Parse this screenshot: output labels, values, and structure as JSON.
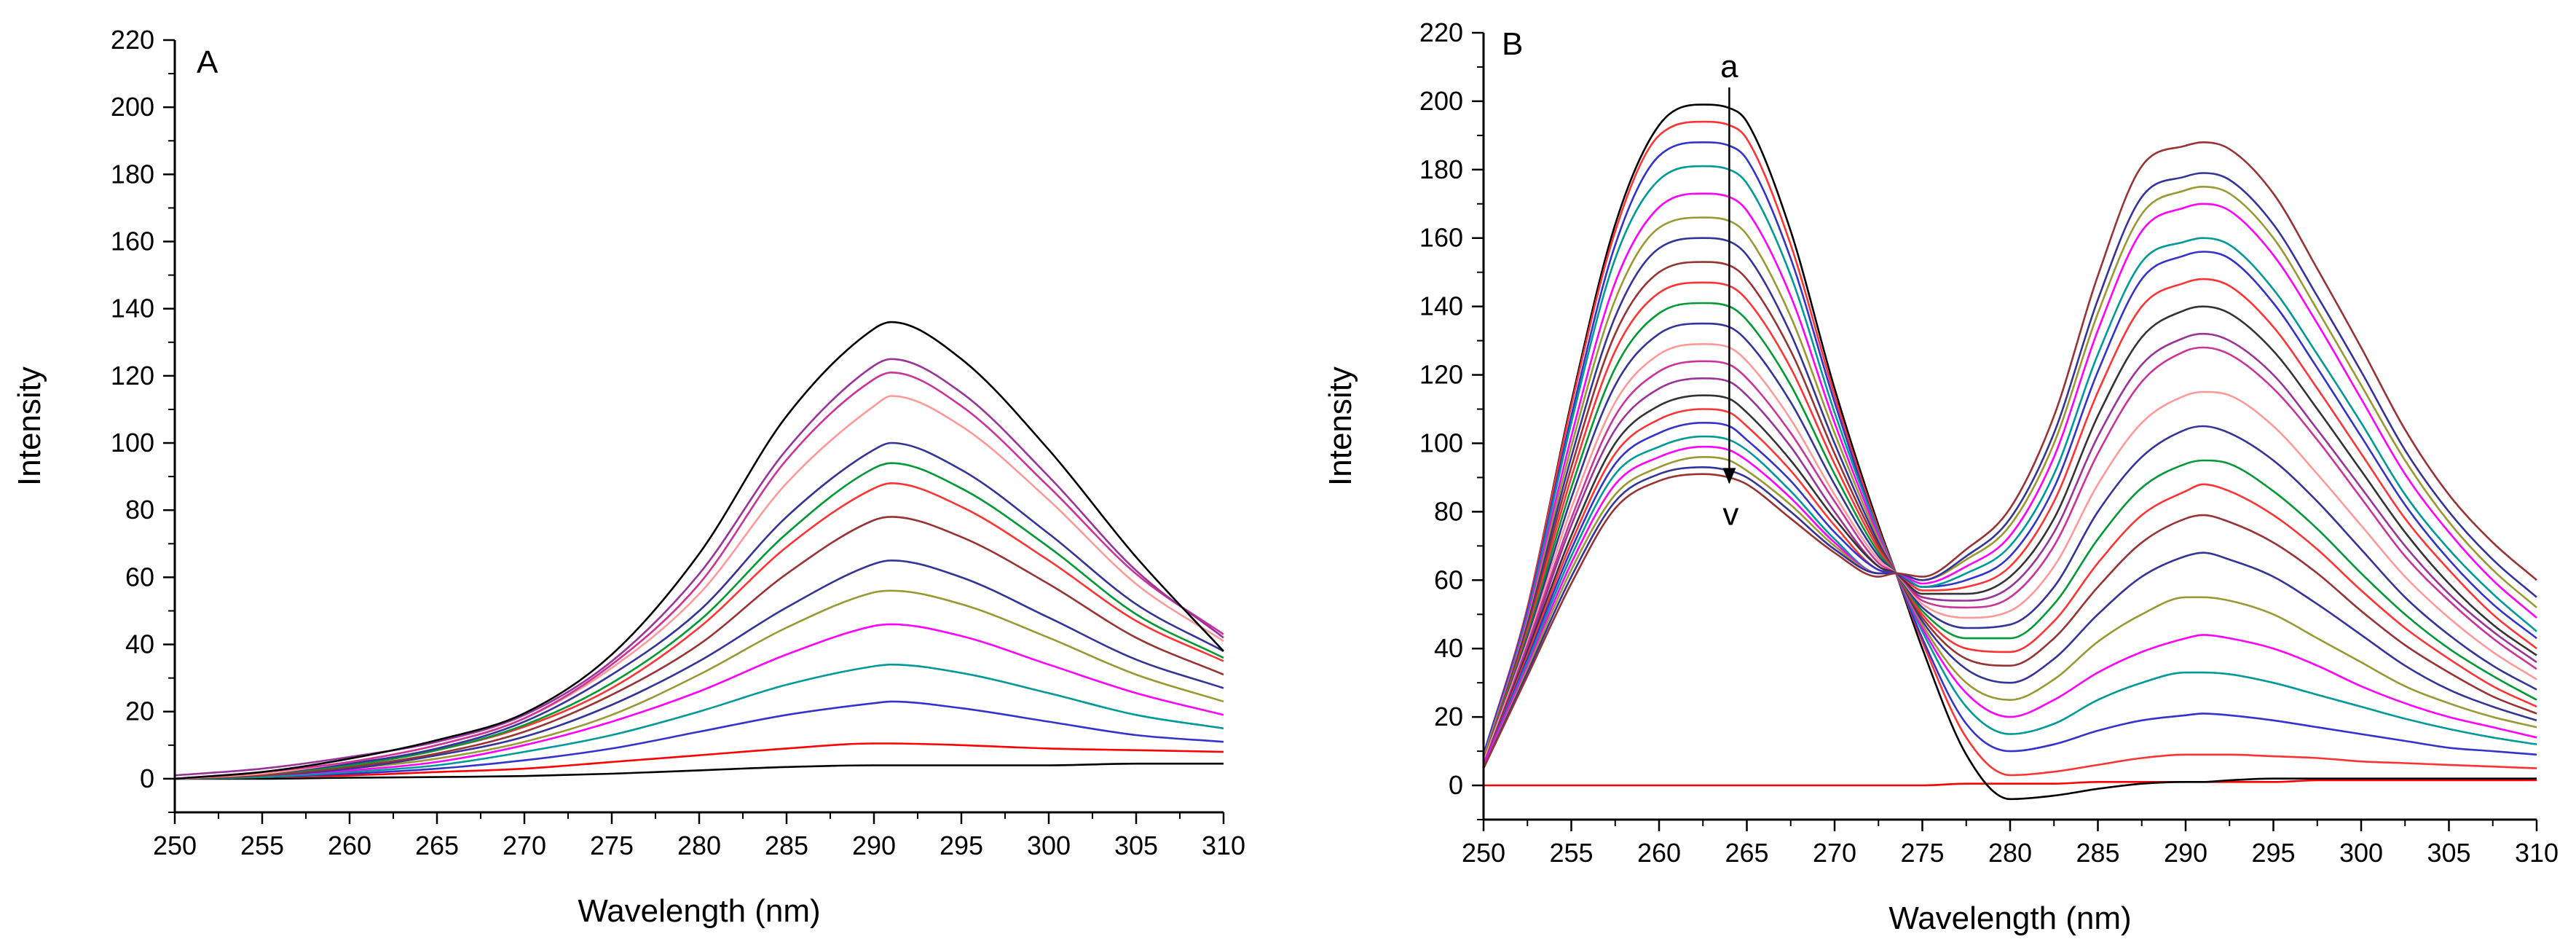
{
  "chart_data": [
    {
      "type": "line",
      "panel_label": "A",
      "xlabel": "Wavelength (nm)",
      "ylabel": "Intensity",
      "xlim": [
        250,
        310
      ],
      "ylim": [
        -10,
        220
      ],
      "xticks": [
        250,
        255,
        260,
        265,
        270,
        275,
        280,
        285,
        290,
        295,
        300,
        305,
        310
      ],
      "yticks": [
        0,
        20,
        40,
        60,
        80,
        100,
        120,
        140,
        160,
        180,
        200,
        220
      ],
      "x": [
        250,
        255,
        260,
        265,
        270,
        275,
        280,
        285,
        290,
        291,
        295,
        300,
        305,
        310
      ],
      "grid": false,
      "legend": "none",
      "series": [
        {
          "color": "#000000",
          "values": [
            0,
            0,
            0.3,
            0.5,
            0.8,
            1.5,
            2.5,
            3.5,
            4,
            4,
            4,
            4,
            4.5,
            4.5
          ]
        },
        {
          "color": "#ff0000",
          "values": [
            0,
            0.5,
            1,
            2,
            3,
            5,
            7,
            9,
            10.5,
            10.5,
            10,
            9,
            8.5,
            8
          ]
        },
        {
          "color": "#3333cc",
          "values": [
            0,
            0.5,
            1.5,
            3,
            5.5,
            9,
            14,
            19,
            22.5,
            23,
            21,
            17,
            13,
            11
          ]
        },
        {
          "color": "#009999",
          "values": [
            0,
            0.5,
            2,
            4,
            8,
            13,
            20,
            28,
            33.5,
            34,
            31.5,
            25.5,
            19,
            15
          ]
        },
        {
          "color": "#ff00ff",
          "values": [
            0,
            1,
            2.5,
            5,
            10,
            17,
            26,
            37,
            45.5,
            46,
            42.5,
            34,
            25.5,
            19
          ]
        },
        {
          "color": "#999933",
          "values": [
            0,
            1,
            3,
            6,
            11,
            19,
            31,
            45,
            55.5,
            56,
            52,
            42,
            31,
            23
          ]
        },
        {
          "color": "#333399",
          "values": [
            0,
            1,
            3,
            7,
            12.5,
            22,
            35,
            51,
            64,
            65,
            60,
            48,
            35.5,
            27
          ]
        },
        {
          "color": "#993333",
          "values": [
            0,
            1,
            3.5,
            7.5,
            14,
            25,
            40,
            61,
            77,
            78,
            72,
            58,
            42,
            31
          ]
        },
        {
          "color": "#ff3333",
          "values": [
            0,
            1.5,
            4,
            8.5,
            15.5,
            27,
            45,
            69,
            86.5,
            88,
            81,
            65,
            47,
            35
          ]
        },
        {
          "color": "#009933",
          "values": [
            0,
            1.5,
            4,
            8.5,
            16,
            28.5,
            47,
            73,
            92.5,
            94,
            86.5,
            69,
            49,
            36
          ]
        },
        {
          "color": "#333399",
          "values": [
            0,
            1.5,
            4.5,
            9,
            17,
            31,
            50,
            78,
            98,
            100,
            92,
            73,
            52,
            38
          ]
        },
        {
          "color": "#ff9999",
          "values": [
            0,
            1.5,
            5,
            10,
            18,
            33,
            55,
            88,
            111,
            114,
            105,
            83,
            58,
            41
          ]
        },
        {
          "color": "#cc3399",
          "values": [
            0,
            2,
            5,
            10,
            18,
            34,
            58,
            95,
            119,
            121,
            111,
            87,
            61,
            43
          ]
        },
        {
          "color": "#993399",
          "values": [
            1,
            3,
            6.5,
            11,
            19,
            35,
            61,
            98,
            123,
            125,
            115,
            90,
            62,
            42
          ]
        },
        {
          "color": "#000000",
          "values": [
            0,
            2,
            6,
            11.5,
            19.5,
            37,
            67,
            108,
            134,
            136,
            125,
            98,
            66,
            38
          ]
        }
      ]
    },
    {
      "type": "line",
      "panel_label": "B",
      "xlabel": "Wavelength (nm)",
      "ylabel": "Intensity",
      "xlim": [
        250,
        310
      ],
      "ylim": [
        -10,
        220
      ],
      "xticks": [
        250,
        255,
        260,
        265,
        270,
        275,
        280,
        285,
        290,
        295,
        300,
        305,
        310
      ],
      "yticks": [
        0,
        20,
        40,
        60,
        80,
        100,
        120,
        140,
        160,
        180,
        200,
        220
      ],
      "x": [
        250,
        252.5,
        255,
        257.5,
        260,
        262.5,
        264,
        265,
        267.5,
        270,
        272.5,
        273.5,
        275,
        277.5,
        280,
        282.5,
        285,
        287.5,
        290,
        291,
        292.5,
        295,
        297.5,
        300,
        302.5,
        305,
        307.5,
        310
      ],
      "grid": false,
      "legend": "none",
      "annotations": [
        {
          "text": "a",
          "x": 264,
          "y": 210
        },
        {
          "text": "v",
          "x": 264,
          "y": 80
        }
      ],
      "series": [
        {
          "color": "#ff0000",
          "values": [
            0,
            0,
            0,
            0,
            0,
            0,
            0,
            0,
            0,
            0,
            0,
            0,
            0,
            0.5,
            0.5,
            0.5,
            1,
            1,
            1,
            1,
            1,
            1,
            1.5,
            1.5,
            1.5,
            1.5,
            1.5,
            1.5
          ]
        },
        {
          "color": "#000000",
          "values": [
            8,
            52,
            112,
            164,
            193,
            199,
            198,
            194,
            162,
            116,
            76,
            62,
            40,
            9,
            -4,
            -3,
            -1,
            0.5,
            1,
            1,
            1.5,
            2,
            2,
            2,
            2,
            2,
            2,
            2
          ]
        },
        {
          "color": "#ff3333",
          "values": [
            9,
            52,
            111,
            162,
            190,
            194,
            193,
            189,
            158,
            114,
            75,
            62,
            42,
            14,
            3,
            4,
            6,
            8,
            9,
            9,
            9,
            8.5,
            8,
            7,
            6.5,
            6,
            5.5,
            5
          ]
        },
        {
          "color": "#3333cc",
          "values": [
            9,
            51,
            108,
            158,
            184,
            188,
            187,
            183,
            154,
            112,
            74,
            62,
            43,
            18,
            10,
            12,
            16,
            19,
            20.5,
            21,
            20.5,
            19,
            17,
            15,
            13,
            11,
            10,
            9
          ]
        },
        {
          "color": "#009999",
          "values": [
            8,
            50,
            106,
            154,
            177,
            181,
            180,
            176,
            149,
            109,
            74,
            62,
            45,
            23,
            15,
            18,
            25,
            30,
            33,
            33,
            32.5,
            30,
            26.5,
            23,
            19.5,
            16.5,
            14,
            12
          ]
        },
        {
          "color": "#ff00ff",
          "values": [
            8,
            49,
            102,
            147,
            169,
            173,
            172,
            168,
            143,
            106,
            73,
            62,
            46,
            27,
            20,
            25,
            33,
            39,
            43,
            44,
            43,
            40,
            35,
            29,
            24,
            20,
            17,
            14
          ]
        },
        {
          "color": "#999933",
          "values": [
            8,
            48,
            99,
            142,
            163,
            166,
            165,
            161,
            137,
            103,
            72,
            62,
            47,
            30,
            25,
            31,
            42,
            50,
            55,
            55,
            54,
            50,
            43,
            36,
            29,
            24,
            20,
            17
          ]
        },
        {
          "color": "#333399",
          "values": [
            7,
            47,
            96,
            137,
            157,
            160,
            159,
            155,
            132,
            100,
            71,
            62,
            48,
            34,
            30,
            37,
            50,
            61,
            67,
            68,
            66,
            61,
            53,
            44,
            35,
            28,
            23,
            19
          ]
        },
        {
          "color": "#993333",
          "values": [
            7,
            46,
            93,
            132,
            150,
            153,
            152,
            148,
            127,
            97,
            70,
            62,
            49,
            37,
            35,
            43,
            58,
            71,
            78,
            79,
            77,
            71,
            62,
            51,
            41,
            33,
            26,
            21
          ]
        },
        {
          "color": "#ff3333",
          "values": [
            7,
            45,
            90,
            127,
            144,
            147,
            146,
            142,
            122,
            94,
            69,
            62,
            50,
            40,
            39,
            48,
            65,
            79,
            86,
            88,
            86,
            79,
            69,
            57,
            46,
            37,
            29,
            23
          ]
        },
        {
          "color": "#009933",
          "values": [
            7,
            44,
            87,
            122,
            138,
            141,
            140,
            136,
            117,
            91,
            68,
            62,
            51,
            43,
            43,
            53,
            72,
            87,
            94,
            95,
            94,
            86,
            75,
            62,
            50,
            40,
            32,
            25
          ]
        },
        {
          "color": "#333399",
          "values": [
            7,
            43,
            84,
            117,
            132,
            135,
            134,
            130,
            112,
            88,
            67,
            62,
            52,
            46,
            47,
            58,
            80,
            96,
            104,
            105,
            103,
            95,
            83,
            69,
            55,
            44,
            35,
            28
          ]
        },
        {
          "color": "#ff9999",
          "values": [
            7,
            42,
            81,
            112,
            126,
            129,
            128,
            124,
            107,
            85,
            66,
            62,
            53,
            49,
            51,
            64,
            88,
            106,
            114,
            115,
            114,
            105,
            91,
            76,
            61,
            49,
            39,
            31
          ]
        },
        {
          "color": "#cc3399",
          "values": [
            6,
            41,
            78,
            108,
            121,
            124,
            123,
            119,
            103,
            83,
            65,
            62,
            54,
            52,
            55,
            70,
            97,
            118,
            127,
            128,
            126,
            116,
            101,
            84,
            67,
            54,
            43,
            34
          ]
        },
        {
          "color": "#993399",
          "values": [
            6,
            40,
            76,
            104,
            116,
            119,
            118,
            114,
            99,
            80,
            64,
            62,
            55,
            54,
            58,
            74,
            102,
            123,
            131,
            132,
            130,
            120,
            104,
            87,
            70,
            56,
            45,
            36
          ]
        },
        {
          "color": "#333333",
          "values": [
            6,
            39,
            73,
            100,
            111,
            114,
            113,
            109,
            95,
            78,
            64,
            62,
            56,
            56,
            61,
            78,
            108,
            131,
            139,
            140,
            138,
            127,
            110,
            92,
            74,
            59,
            47,
            38
          ]
        },
        {
          "color": "#ff3333",
          "values": [
            6,
            38,
            71,
            97,
            107,
            110,
            109,
            105,
            92,
            76,
            63,
            62,
            57,
            58,
            64,
            83,
            115,
            140,
            147,
            148,
            146,
            134,
            116,
            97,
            78,
            63,
            50,
            40
          ]
        },
        {
          "color": "#3333cc",
          "values": [
            6,
            37,
            69,
            94,
            103,
            106,
            105,
            101,
            89,
            74,
            63,
            62,
            58,
            60,
            67,
            87,
            121,
            148,
            155,
            156,
            154,
            141,
            122,
            102,
            82,
            66,
            53,
            43
          ]
        },
        {
          "color": "#009999",
          "values": [
            6,
            36,
            67,
            91,
            99,
            102,
            101,
            98,
            86,
            72,
            62,
            62,
            58,
            62,
            70,
            91,
            126,
            153,
            159,
            160,
            158,
            145,
            126,
            106,
            85,
            69,
            56,
            45
          ]
        },
        {
          "color": "#ff00ff",
          "values": [
            6,
            35,
            65,
            88,
            96,
            99,
            98,
            95,
            84,
            71,
            62,
            62,
            59,
            64,
            73,
            96,
            133,
            162,
            169,
            170,
            168,
            155,
            135,
            113,
            91,
            74,
            60,
            49
          ]
        },
        {
          "color": "#999933",
          "values": [
            5,
            34,
            63,
            85,
            93,
            96,
            95,
            92,
            82,
            70,
            62,
            62,
            60,
            66,
            76,
            100,
            138,
            167,
            174,
            175,
            173,
            160,
            139,
            117,
            95,
            77,
            63,
            52
          ]
        },
        {
          "color": "#333399",
          "values": [
            5,
            33,
            61,
            83,
            91,
            93,
            92,
            90,
            80,
            69,
            62,
            62,
            60,
            67,
            78,
            103,
            142,
            172,
            178,
            179,
            177,
            164,
            143,
            121,
            98,
            80,
            66,
            55
          ]
        },
        {
          "color": "#993333",
          "values": [
            5,
            32,
            59,
            81,
            89,
            91,
            90,
            88,
            78,
            68,
            61,
            62,
            61,
            69,
            81,
            108,
            149,
            181,
            187,
            188,
            186,
            173,
            151,
            128,
            104,
            85,
            71,
            60
          ]
        }
      ]
    }
  ]
}
